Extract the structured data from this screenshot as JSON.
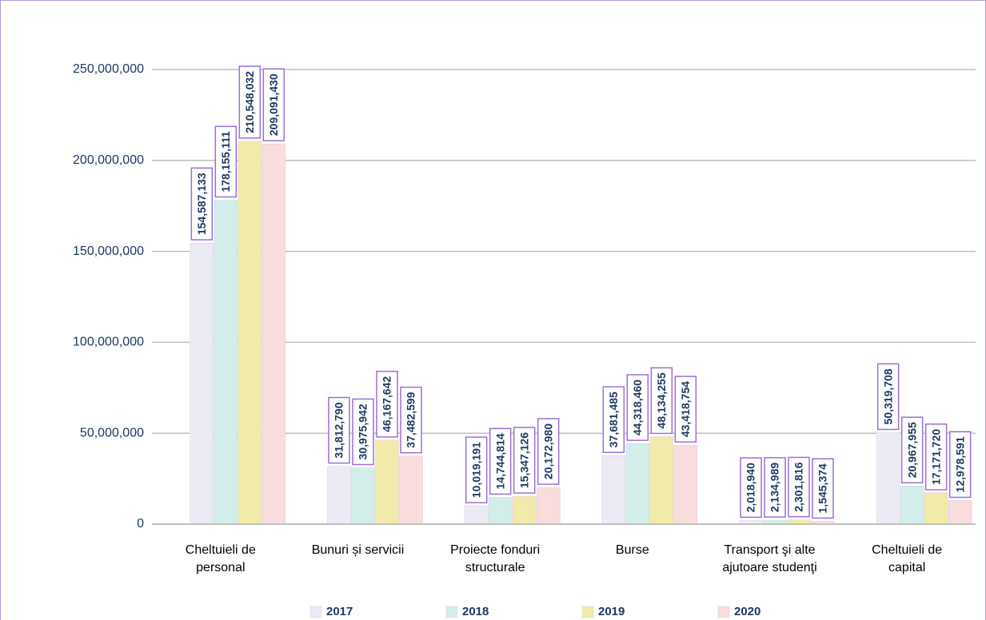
{
  "chart_data": {
    "type": "bar",
    "categories": [
      "Cheltuieli de personal",
      "Bunuri și servicii",
      "Proiecte fonduri structurale",
      "Burse",
      "Transport şi alte ajutoare studenţi",
      "Cheltuieli de capital"
    ],
    "series": [
      {
        "name": "2017",
        "color": "#ecebf5",
        "values": [
          154587133,
          31812790,
          10019191,
          37681485,
          2018940,
          50319708
        ],
        "value_labels": [
          "154,587,133",
          "31,812,790",
          "10,019,191",
          "37,681,485",
          "2,018,940",
          "50,319,708"
        ]
      },
      {
        "name": "2018",
        "color": "#d3eeea",
        "values": [
          178155111,
          30975942,
          14744814,
          44318460,
          2134989,
          20967955
        ],
        "value_labels": [
          "178,155,111",
          "30,975,942",
          "14,744,814",
          "44,318,460",
          "2,134,989",
          "20,967,955"
        ]
      },
      {
        "name": "2019",
        "color": "#f2eaab",
        "values": [
          210548032,
          46167642,
          15347126,
          48134255,
          2301816,
          17171720
        ],
        "value_labels": [
          "210,548,032",
          "46,167,642",
          "15,347,126",
          "48,134,255",
          "2,301,816",
          "17,171,720"
        ]
      },
      {
        "name": "2020",
        "color": "#f9dcdc",
        "values": [
          209091430,
          37482599,
          20172980,
          43418754,
          1545374,
          12978591
        ],
        "value_labels": [
          "209,091,430",
          "37,482,599",
          "20,172,980",
          "43,418,754",
          "1,545,374",
          "12,978,591"
        ]
      }
    ],
    "ylim": [
      0,
      250000000
    ],
    "yticks": [
      0,
      {
        "value": 50000000,
        "label": "50,000,000"
      },
      {
        "value": 100000000,
        "label": "100,000,000"
      },
      {
        "value": 150000000,
        "label": "150,000,000"
      },
      {
        "value": 200000000,
        "label": "200,000,000"
      },
      {
        "value": 250000000,
        "label": "250,000,000"
      }
    ],
    "grid": true,
    "legend": "bottom"
  }
}
